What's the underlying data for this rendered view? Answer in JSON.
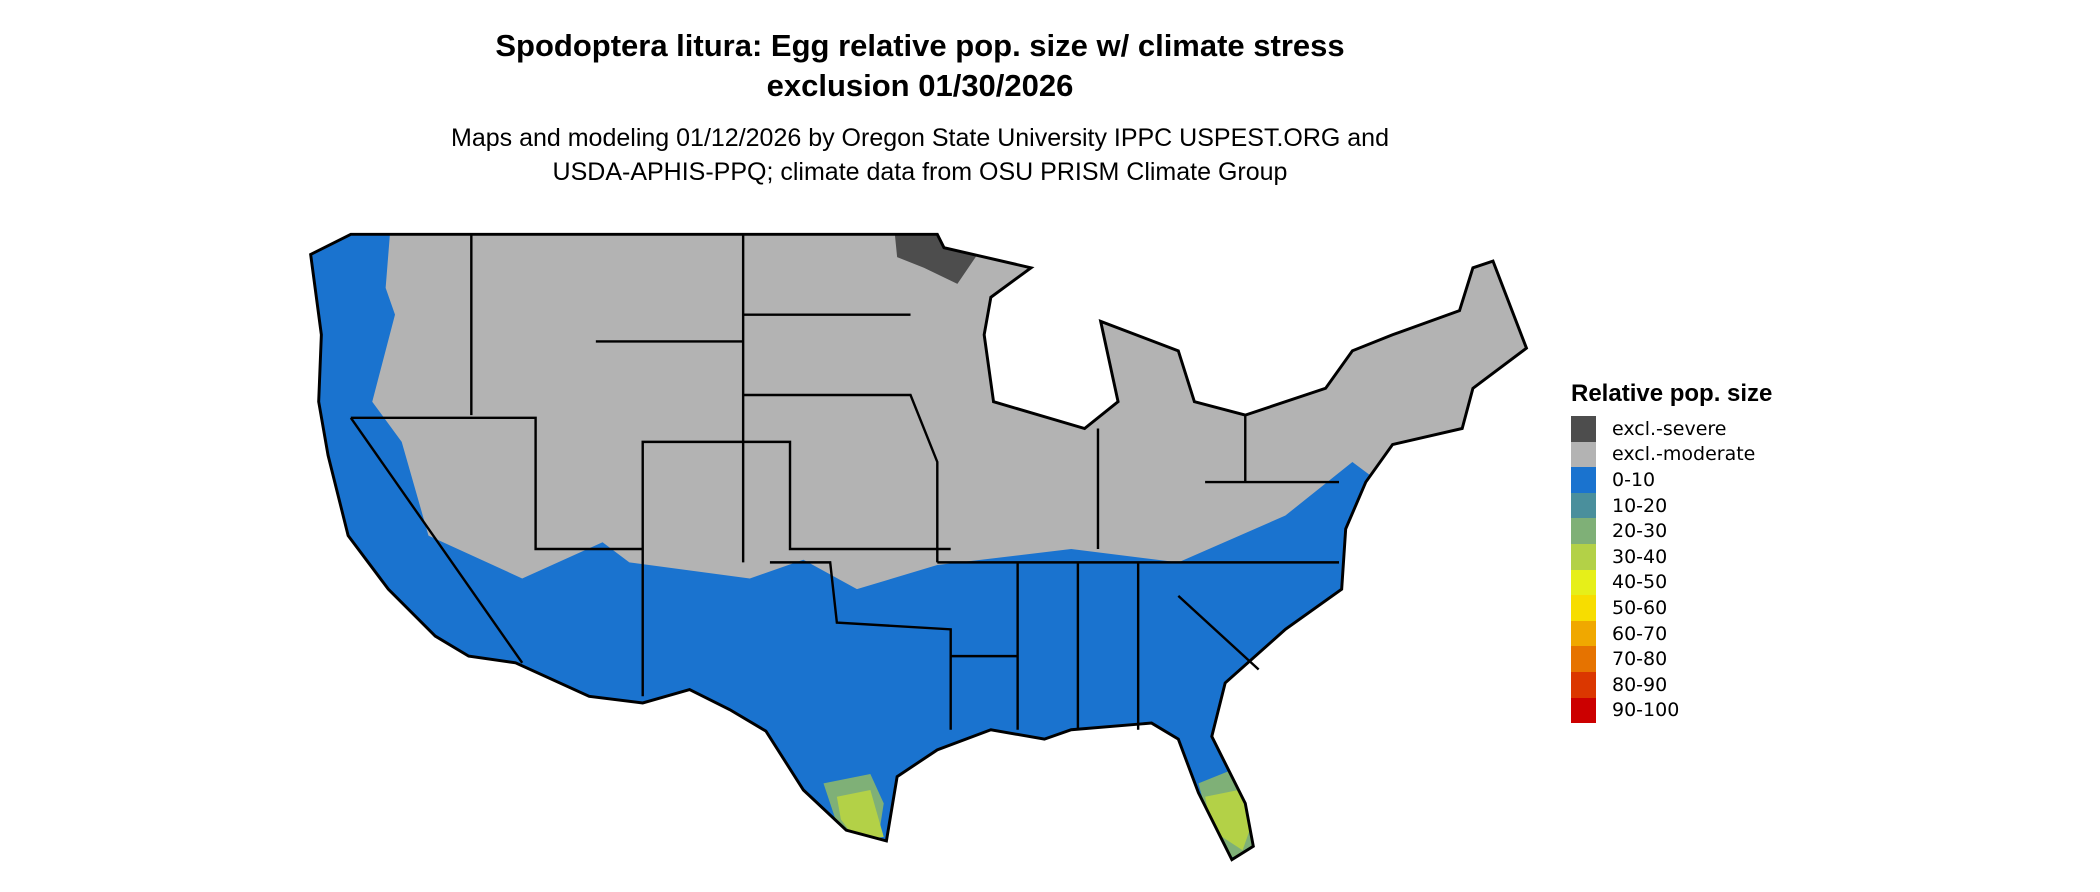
{
  "title": {
    "line1": "Spodoptera litura: Egg relative pop. size w/ climate stress",
    "line2": "exclusion 01/30/2026"
  },
  "subtitle": {
    "line1": "Maps and modeling 01/12/2026 by Oregon State University IPPC USPEST.ORG and",
    "line2": "USDA-APHIS-PPQ; climate data from OSU PRISM Climate Group"
  },
  "chart_data": {
    "type": "map",
    "region": "Conterminous United States",
    "legend": {
      "title": "Relative pop. size",
      "placement": "right",
      "entries": [
        {
          "label": "excl.-severe",
          "color": "#4d4d4d"
        },
        {
          "label": "excl.-moderate",
          "color": "#b3b3b3"
        },
        {
          "label": "0-10",
          "color": "#1a73cf"
        },
        {
          "label": "10-20",
          "color": "#4a8f9c"
        },
        {
          "label": "20-30",
          "color": "#7fb077"
        },
        {
          "label": "30-40",
          "color": "#b3d147"
        },
        {
          "label": "40-50",
          "color": "#e6ef19"
        },
        {
          "label": "50-60",
          "color": "#f7dd00"
        },
        {
          "label": "60-70",
          "color": "#f0a800"
        },
        {
          "label": "70-80",
          "color": "#e67300"
        },
        {
          "label": "80-90",
          "color": "#db3700"
        },
        {
          "label": "90-100",
          "color": "#cc0000"
        }
      ]
    }
  }
}
